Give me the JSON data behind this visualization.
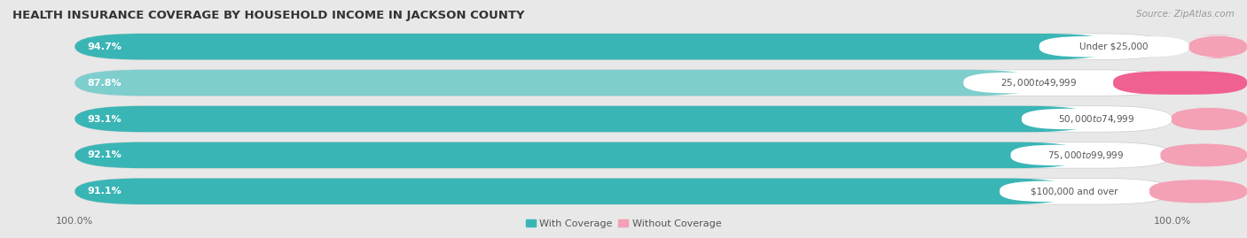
{
  "title": "HEALTH INSURANCE COVERAGE BY HOUSEHOLD INCOME IN JACKSON COUNTY",
  "source": "Source: ZipAtlas.com",
  "categories": [
    "Under $25,000",
    "$25,000 to $49,999",
    "$50,000 to $74,999",
    "$75,000 to $99,999",
    "$100,000 and over"
  ],
  "with_coverage": [
    94.7,
    87.8,
    93.1,
    92.1,
    91.1
  ],
  "without_coverage": [
    5.3,
    12.2,
    6.9,
    7.9,
    8.9
  ],
  "color_coverage": "#3ab5b5",
  "color_coverage_light": "#7ecece",
  "color_without_1": "#f4a0b5",
  "color_without_2": "#f06090",
  "background_color": "#e8e8e8",
  "bar_background": "#ffffff",
  "pill_edge_color": "#cccccc",
  "title_fontsize": 9.5,
  "label_fontsize": 8,
  "tick_fontsize": 8,
  "source_fontsize": 7.5
}
